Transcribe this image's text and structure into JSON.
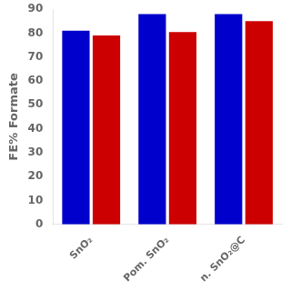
{
  "chart_data": {
    "type": "bar",
    "ylabel": "FE% Formate",
    "categories": [
      "SnO₂",
      "Pom. SnO₂",
      "n. SnO₂@C"
    ],
    "series": [
      {
        "color": "#0000CC",
        "values": [
          81,
          88,
          88
        ]
      },
      {
        "color": "#CC0000",
        "values": [
          79,
          80.5,
          85
        ]
      }
    ],
    "ylim": [
      0,
      90
    ],
    "yticks": [
      0,
      10,
      20,
      30,
      40,
      50,
      60,
      70,
      80,
      90
    ],
    "grid": false
  }
}
